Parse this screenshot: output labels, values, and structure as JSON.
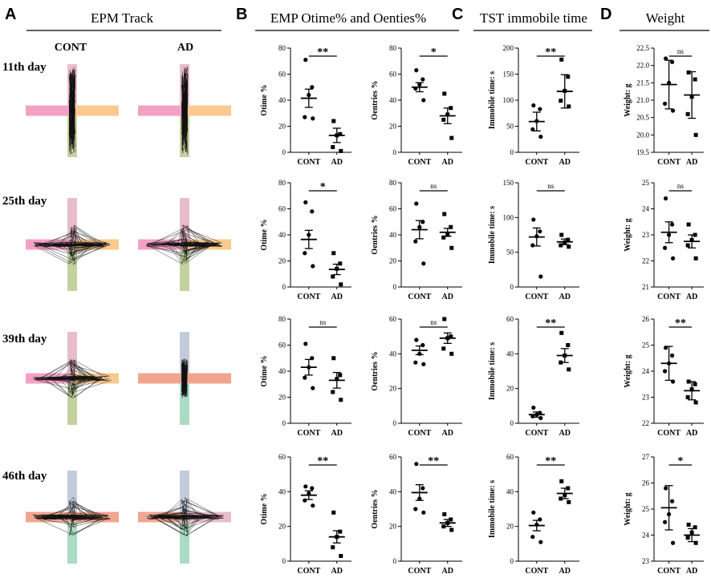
{
  "panels": {
    "A": {
      "letter": "A",
      "title": "EPM Track",
      "col_labels": [
        "CONT",
        "AD"
      ]
    },
    "B": {
      "letter": "B",
      "title": "EMP Otime% and Oenties%"
    },
    "C": {
      "letter": "C",
      "title": "TST immobile time"
    },
    "D": {
      "letter": "D",
      "title": "Weight"
    }
  },
  "row_labels": [
    "11th day",
    "25th day",
    "39th day",
    "46th day"
  ],
  "colors": {
    "pink": "#f2a1c5",
    "orange": "#f9c98f",
    "olive": "#c4d19e",
    "lightpink": "#e8bccb",
    "slate": "#c2cbd9",
    "mint": "#a9dbc5",
    "salmon": "#f0a590"
  },
  "tracks": [
    {
      "cont": {
        "left": "pink",
        "right": "orange",
        "top": "lightpink",
        "bottom": "olive"
      },
      "ad": {
        "left": "pink",
        "right": "orange",
        "top": "lightpink",
        "bottom": "olive"
      }
    },
    {
      "cont": {
        "left": "pink",
        "right": "orange",
        "top": "lightpink",
        "bottom": "olive"
      },
      "ad": {
        "left": "pink",
        "right": "orange",
        "top": "lightpink",
        "bottom": "olive"
      }
    },
    {
      "cont": {
        "left": "pink",
        "right": "orange",
        "top": "lightpink",
        "bottom": "olive"
      },
      "ad": {
        "left": "salmon",
        "right": "salmon",
        "top": "slate",
        "bottom": "mint"
      }
    },
    {
      "cont": {
        "left": "salmon",
        "right": "salmon",
        "top": "slate",
        "bottom": "mint"
      },
      "ad": {
        "left": "salmon",
        "right": "lightpink",
        "top": "slate",
        "bottom": "mint"
      }
    }
  ],
  "chart_data": [
    {
      "type": "scatter",
      "panel": "B",
      "row": 0,
      "col": 0,
      "ylabel": "Otime %",
      "ylim": [
        0,
        80
      ],
      "yticks": [
        "0",
        "20",
        "40",
        "60",
        "80"
      ],
      "categories": [
        "CONT",
        "AD"
      ],
      "sig": "**",
      "series": [
        {
          "name": "CONT",
          "marker": "circle",
          "values": [
            71,
            50,
            44,
            27,
            26
          ],
          "mean": 41.5,
          "sem": 7
        },
        {
          "name": "AD",
          "marker": "square",
          "values": [
            24,
            14,
            13,
            4,
            1
          ],
          "mean": 13,
          "sem": 5.5
        }
      ]
    },
    {
      "type": "scatter",
      "panel": "B",
      "row": 0,
      "col": 1,
      "ylabel": "Oentries %",
      "ylim": [
        0,
        80
      ],
      "yticks": [
        "0",
        "20",
        "40",
        "60",
        "80"
      ],
      "categories": [
        "CONT",
        "AD"
      ],
      "sig": "*",
      "series": [
        {
          "name": "CONT",
          "marker": "circle",
          "values": [
            63,
            56,
            52,
            49,
            40
          ],
          "mean": 50,
          "sem": 3.5
        },
        {
          "name": "AD",
          "marker": "square",
          "values": [
            45,
            34,
            29,
            25,
            11
          ],
          "mean": 28,
          "sem": 6
        }
      ]
    },
    {
      "type": "scatter",
      "panel": "C",
      "row": 0,
      "col": 0,
      "ylabel": "Immobile time: s",
      "ylim": [
        0,
        200
      ],
      "yticks": [
        "0",
        "50",
        "100",
        "150",
        "200"
      ],
      "categories": [
        "CONT",
        "AD"
      ],
      "sig": "**",
      "series": [
        {
          "name": "CONT",
          "marker": "circle",
          "values": [
            90,
            83,
            60,
            44,
            30
          ],
          "mean": 59,
          "sem": 18
        },
        {
          "name": "AD",
          "marker": "square",
          "values": [
            178,
            145,
            118,
            99,
            88
          ],
          "mean": 117,
          "sem": 32
        }
      ]
    },
    {
      "type": "scatter",
      "panel": "D",
      "row": 0,
      "col": 0,
      "ylabel": "Weight: g",
      "ylim": [
        19.5,
        22.5
      ],
      "yticks": [
        "19.5",
        "20.0",
        "20.5",
        "21.0",
        "21.5",
        "22.0",
        "22.5"
      ],
      "categories": [
        "CONT",
        "AD"
      ],
      "sig": "ns",
      "series": [
        {
          "name": "CONT",
          "marker": "circle",
          "values": [
            22.2,
            22.1,
            21.5,
            20.9,
            20.7
          ],
          "mean": 21.45,
          "sem": 0.7
        },
        {
          "name": "AD",
          "marker": "square",
          "values": [
            21.8,
            21.6,
            21.1,
            20.6,
            20.0
          ],
          "mean": 21.15,
          "sem": 0.67
        }
      ]
    },
    {
      "type": "scatter",
      "panel": "B",
      "row": 1,
      "col": 0,
      "ylabel": "Otime %",
      "ylim": [
        0,
        80
      ],
      "yticks": [
        "0",
        "20",
        "40",
        "60",
        "80"
      ],
      "categories": [
        "CONT",
        "AD"
      ],
      "sig": "*",
      "series": [
        {
          "name": "CONT",
          "marker": "circle",
          "values": [
            65,
            58,
            40,
            26,
            16
          ],
          "mean": 36.5,
          "sem": 7
        },
        {
          "name": "AD",
          "marker": "square",
          "values": [
            26,
            18,
            14,
            8,
            2
          ],
          "mean": 13.5,
          "sem": 4
        }
      ]
    },
    {
      "type": "scatter",
      "panel": "B",
      "row": 1,
      "col": 1,
      "ylabel": "Oentries %",
      "ylim": [
        0,
        80
      ],
      "yticks": [
        "0",
        "20",
        "40",
        "60",
        "80"
      ],
      "categories": [
        "CONT",
        "AD"
      ],
      "sig": "ns",
      "series": [
        {
          "name": "CONT",
          "marker": "circle",
          "values": [
            64,
            50,
            46,
            35,
            18
          ],
          "mean": 44,
          "sem": 7
        },
        {
          "name": "AD",
          "marker": "square",
          "values": [
            56,
            46,
            40,
            38,
            30
          ],
          "mean": 42,
          "sem": 3
        }
      ]
    },
    {
      "type": "scatter",
      "panel": "C",
      "row": 1,
      "col": 0,
      "ylabel": "Immobile time: s",
      "ylim": [
        0,
        150
      ],
      "yticks": [
        "0",
        "50",
        "100",
        "150"
      ],
      "categories": [
        "CONT",
        "AD"
      ],
      "sig": "ns",
      "series": [
        {
          "name": "CONT",
          "marker": "circle",
          "values": [
            97,
            80,
            73,
            60,
            15
          ],
          "mean": 72,
          "sem": 13
        },
        {
          "name": "AD",
          "marker": "square",
          "values": [
            75,
            68,
            64,
            60,
            58
          ],
          "mean": 65,
          "sem": 4
        }
      ]
    },
    {
      "type": "scatter",
      "panel": "D",
      "row": 1,
      "col": 0,
      "ylabel": "Weight: g",
      "ylim": [
        21,
        25
      ],
      "yticks": [
        "21",
        "22",
        "23",
        "24",
        "25"
      ],
      "categories": [
        "CONT",
        "AD"
      ],
      "sig": "ns",
      "series": [
        {
          "name": "CONT",
          "marker": "circle",
          "values": [
            24.4,
            23.4,
            23.0,
            22.5,
            22.1
          ],
          "mean": 23.1,
          "sem": 0.4
        },
        {
          "name": "AD",
          "marker": "square",
          "values": [
            23.4,
            23.0,
            22.8,
            22.6,
            22.1
          ],
          "mean": 22.75,
          "sem": 0.25
        }
      ]
    },
    {
      "type": "scatter",
      "panel": "B",
      "row": 2,
      "col": 0,
      "ylabel": "Otime %",
      "ylim": [
        0,
        80
      ],
      "yticks": [
        "0",
        "20",
        "40",
        "60",
        "80"
      ],
      "categories": [
        "CONT",
        "AD"
      ],
      "sig": "ns",
      "series": [
        {
          "name": "CONT",
          "marker": "circle",
          "values": [
            61,
            50,
            43,
            35,
            27
          ],
          "mean": 43,
          "sem": 6
        },
        {
          "name": "AD",
          "marker": "square",
          "values": [
            50,
            37,
            34,
            24,
            18
          ],
          "mean": 33,
          "sem": 6
        }
      ]
    },
    {
      "type": "scatter",
      "panel": "B",
      "row": 2,
      "col": 1,
      "ylabel": "Oentries %",
      "ylim": [
        0,
        60
      ],
      "yticks": [
        "0",
        "20",
        "40",
        "60"
      ],
      "categories": [
        "CONT",
        "AD"
      ],
      "sig": "ns",
      "series": [
        {
          "name": "CONT",
          "marker": "circle",
          "values": [
            48,
            45,
            40,
            35,
            34
          ],
          "mean": 42,
          "sem": 2.5
        },
        {
          "name": "AD",
          "marker": "square",
          "values": [
            60,
            50,
            49,
            43,
            40
          ],
          "mean": 49,
          "sem": 3
        }
      ]
    },
    {
      "type": "scatter",
      "panel": "C",
      "row": 2,
      "col": 0,
      "ylabel": "Immobile time: s",
      "ylim": [
        0,
        60
      ],
      "yticks": [
        "0",
        "20",
        "40",
        "60"
      ],
      "categories": [
        "CONT",
        "AD"
      ],
      "sig": "**",
      "series": [
        {
          "name": "CONT",
          "marker": "circle",
          "values": [
            9,
            6,
            5,
            4,
            3
          ],
          "mean": 5,
          "sem": 1.5
        },
        {
          "name": "AD",
          "marker": "square",
          "values": [
            52,
            45,
            39,
            35,
            31
          ],
          "mean": 39,
          "sem": 4
        }
      ]
    },
    {
      "type": "scatter",
      "panel": "D",
      "row": 2,
      "col": 0,
      "ylabel": "Weight: g",
      "ylim": [
        22,
        26
      ],
      "yticks": [
        "22",
        "23",
        "24",
        "25",
        "26"
      ],
      "categories": [
        "CONT",
        "AD"
      ],
      "sig": "**",
      "series": [
        {
          "name": "CONT",
          "marker": "circle",
          "values": [
            24.9,
            24.6,
            24.3,
            24.0,
            23.6
          ],
          "mean": 24.3,
          "sem": 0.65
        },
        {
          "name": "AD",
          "marker": "square",
          "values": [
            23.6,
            23.5,
            23.3,
            23.0,
            22.8
          ],
          "mean": 23.25,
          "sem": 0.35
        }
      ]
    },
    {
      "type": "scatter",
      "panel": "B",
      "row": 3,
      "col": 0,
      "ylabel": "Otime %",
      "ylim": [
        0,
        60
      ],
      "yticks": [
        "0",
        "20",
        "40",
        "60"
      ],
      "categories": [
        "CONT",
        "AD"
      ],
      "sig": "**",
      "series": [
        {
          "name": "CONT",
          "marker": "circle",
          "values": [
            43,
            42,
            39,
            35,
            32
          ],
          "mean": 38,
          "sem": 2.5
        },
        {
          "name": "AD",
          "marker": "square",
          "values": [
            28,
            17,
            14,
            8,
            3
          ],
          "mean": 14,
          "sem": 3.5
        }
      ]
    },
    {
      "type": "scatter",
      "panel": "B",
      "row": 3,
      "col": 1,
      "ylabel": "Oentries %",
      "ylim": [
        0,
        60
      ],
      "yticks": [
        "0",
        "20",
        "40",
        "60"
      ],
      "categories": [
        "CONT",
        "AD"
      ],
      "sig": "**",
      "series": [
        {
          "name": "CONT",
          "marker": "circle",
          "values": [
            56,
            42,
            36,
            30,
            28
          ],
          "mean": 39.5,
          "sem": 4.5
        },
        {
          "name": "AD",
          "marker": "square",
          "values": [
            27,
            24,
            22,
            20,
            18
          ],
          "mean": 22,
          "sem": 2
        }
      ]
    },
    {
      "type": "scatter",
      "panel": "C",
      "row": 3,
      "col": 0,
      "ylabel": "Immobile time: s",
      "ylim": [
        0,
        60
      ],
      "yticks": [
        "0",
        "20",
        "40",
        "60"
      ],
      "categories": [
        "CONT",
        "AD"
      ],
      "sig": "**",
      "series": [
        {
          "name": "CONT",
          "marker": "circle",
          "values": [
            28,
            24,
            21,
            14,
            11
          ],
          "mean": 20.5,
          "sem": 3
        },
        {
          "name": "AD",
          "marker": "square",
          "values": [
            46,
            42,
            38,
            36,
            34
          ],
          "mean": 39,
          "sem": 3
        }
      ]
    },
    {
      "type": "scatter",
      "panel": "D",
      "row": 3,
      "col": 0,
      "ylabel": "Weight: g",
      "ylim": [
        23,
        27
      ],
      "yticks": [
        "23",
        "24",
        "25",
        "26",
        "27"
      ],
      "categories": [
        "CONT",
        "AD"
      ],
      "sig": "*",
      "series": [
        {
          "name": "CONT",
          "marker": "circle",
          "values": [
            25.8,
            25.3,
            24.8,
            24.5,
            23.7
          ],
          "mean": 25.05,
          "sem": 0.85
        },
        {
          "name": "AD",
          "marker": "square",
          "values": [
            24.4,
            24.3,
            24.1,
            23.9,
            23.7
          ],
          "mean": 24.0,
          "sem": 0.25
        }
      ]
    }
  ]
}
